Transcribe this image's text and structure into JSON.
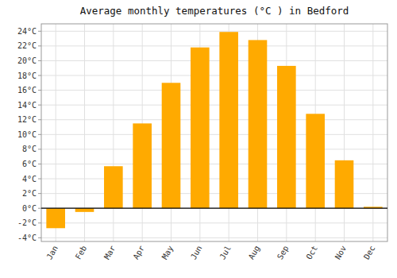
{
  "chart_data": {
    "type": "bar",
    "title": "Average monthly temperatures (°C ) in Bedford",
    "categories": [
      "Jan",
      "Feb",
      "Mar",
      "Apr",
      "May",
      "Jun",
      "Jul",
      "Aug",
      "Sep",
      "Oct",
      "Nov",
      "Dec"
    ],
    "values": [
      -2.7,
      -0.5,
      5.7,
      11.5,
      17.0,
      21.8,
      23.9,
      22.8,
      19.3,
      12.8,
      6.5,
      0.2
    ],
    "color": "#FFAA00",
    "ylim": [
      -4.5,
      25
    ],
    "yticks": [
      {
        "value": -4,
        "label": "-4°C"
      },
      {
        "value": -2,
        "label": "-2°C"
      },
      {
        "value": 0,
        "label": "0°C"
      },
      {
        "value": 2,
        "label": "2°C"
      },
      {
        "value": 4,
        "label": "4°C"
      },
      {
        "value": 6,
        "label": "6°C"
      },
      {
        "value": 8,
        "label": "8°C"
      },
      {
        "value": 10,
        "label": "10°C"
      },
      {
        "value": 12,
        "label": "12°C"
      },
      {
        "value": 14,
        "label": "14°C"
      },
      {
        "value": 16,
        "label": "16°C"
      },
      {
        "value": 18,
        "label": "18°C"
      },
      {
        "value": 20,
        "label": "20°C"
      },
      {
        "value": 22,
        "label": "22°C"
      },
      {
        "value": 24,
        "label": "24°C"
      }
    ],
    "grid": true
  }
}
